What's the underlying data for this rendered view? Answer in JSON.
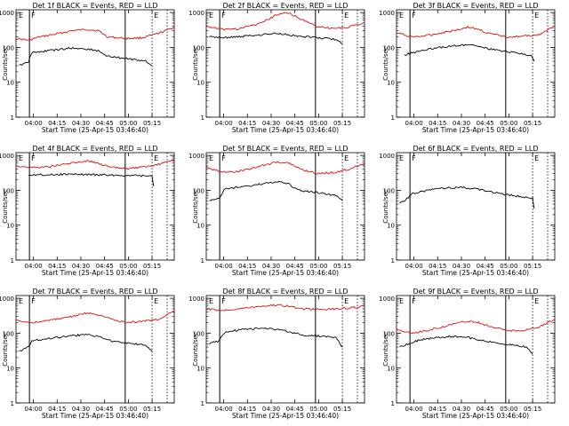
{
  "colors": {
    "events": "#000000",
    "lld": "#dd1111",
    "axis": "#000000"
  },
  "common": {
    "xlabel": "Start Time (25-Apr-15 03:46:40)",
    "ylabel": "Counts/sec",
    "xticks": [
      "04:00",
      "04:15",
      "04:30",
      "04:45",
      "05:00",
      "05:15"
    ],
    "yticks": [
      "1",
      "10",
      "100",
      "1000"
    ],
    "marker_E": "E",
    "marker_F": "F"
  },
  "chart_data": [
    {
      "type": "line",
      "title": "Det 1f BLACK = Events, RED = LLD",
      "yscale": "log",
      "ylim": [
        1,
        1200
      ],
      "lld": [
        [
          0,
          180
        ],
        [
          0.08,
          160
        ],
        [
          0.15,
          200
        ],
        [
          0.25,
          240
        ],
        [
          0.35,
          300
        ],
        [
          0.45,
          330
        ],
        [
          0.52,
          300
        ],
        [
          0.58,
          200
        ],
        [
          0.7,
          180
        ],
        [
          0.8,
          190
        ],
        [
          0.9,
          250
        ],
        [
          1,
          380
        ]
      ],
      "events": [
        [
          0.02,
          30
        ],
        [
          0.08,
          40
        ],
        [
          0.1,
          70
        ],
        [
          0.2,
          80
        ],
        [
          0.35,
          95
        ],
        [
          0.45,
          90
        ],
        [
          0.52,
          80
        ],
        [
          0.58,
          55
        ],
        [
          0.75,
          45
        ],
        [
          0.82,
          40
        ],
        [
          0.86,
          30
        ]
      ]
    },
    {
      "type": "line",
      "title": "Det 2f BLACK = Events, RED = LLD",
      "yscale": "log",
      "ylim": [
        1,
        1200
      ],
      "lld": [
        [
          0,
          420
        ],
        [
          0.08,
          330
        ],
        [
          0.2,
          340
        ],
        [
          0.35,
          500
        ],
        [
          0.45,
          900
        ],
        [
          0.52,
          1000
        ],
        [
          0.58,
          700
        ],
        [
          0.7,
          400
        ],
        [
          0.8,
          350
        ],
        [
          0.9,
          380
        ],
        [
          1,
          500
        ]
      ],
      "events": [
        [
          0.02,
          200
        ],
        [
          0.1,
          190
        ],
        [
          0.2,
          200
        ],
        [
          0.35,
          230
        ],
        [
          0.45,
          250
        ],
        [
          0.55,
          220
        ],
        [
          0.65,
          200
        ],
        [
          0.75,
          180
        ],
        [
          0.82,
          170
        ],
        [
          0.86,
          130
        ]
      ]
    },
    {
      "type": "line",
      "title": "Det 3f BLACK = Events, RED = LLD",
      "yscale": "log",
      "ylim": [
        1,
        1200
      ],
      "lld": [
        [
          0,
          260
        ],
        [
          0.1,
          200
        ],
        [
          0.2,
          220
        ],
        [
          0.35,
          300
        ],
        [
          0.45,
          380
        ],
        [
          0.52,
          330
        ],
        [
          0.58,
          250
        ],
        [
          0.7,
          200
        ],
        [
          0.8,
          210
        ],
        [
          0.9,
          230
        ],
        [
          1,
          400
        ]
      ],
      "events": [
        [
          0.05,
          60
        ],
        [
          0.1,
          70
        ],
        [
          0.2,
          90
        ],
        [
          0.35,
          110
        ],
        [
          0.45,
          120
        ],
        [
          0.52,
          110
        ],
        [
          0.58,
          90
        ],
        [
          0.7,
          75
        ],
        [
          0.8,
          65
        ],
        [
          0.85,
          60
        ],
        [
          0.87,
          40
        ]
      ]
    },
    {
      "type": "line",
      "title": "Det 4f BLACK = Events, RED = LLD",
      "yscale": "log",
      "ylim": [
        1,
        1200
      ],
      "lld": [
        [
          0,
          500
        ],
        [
          0.1,
          450
        ],
        [
          0.2,
          470
        ],
        [
          0.35,
          600
        ],
        [
          0.45,
          700
        ],
        [
          0.52,
          600
        ],
        [
          0.6,
          450
        ],
        [
          0.7,
          420
        ],
        [
          0.8,
          450
        ],
        [
          0.9,
          550
        ],
        [
          1,
          750
        ]
      ],
      "events": [
        [
          0.08,
          280
        ],
        [
          0.2,
          280
        ],
        [
          0.35,
          290
        ],
        [
          0.5,
          280
        ],
        [
          0.65,
          270
        ],
        [
          0.8,
          260
        ],
        [
          0.86,
          250
        ],
        [
          0.87,
          130
        ]
      ]
    },
    {
      "type": "line",
      "title": "Det 5f BLACK = Events, RED = LLD",
      "yscale": "log",
      "ylim": [
        1,
        1200
      ],
      "lld": [
        [
          0,
          450
        ],
        [
          0.1,
          330
        ],
        [
          0.2,
          350
        ],
        [
          0.35,
          500
        ],
        [
          0.45,
          650
        ],
        [
          0.52,
          600
        ],
        [
          0.6,
          400
        ],
        [
          0.7,
          300
        ],
        [
          0.8,
          320
        ],
        [
          0.9,
          400
        ],
        [
          1,
          600
        ]
      ],
      "events": [
        [
          0.02,
          50
        ],
        [
          0.08,
          60
        ],
        [
          0.12,
          110
        ],
        [
          0.25,
          130
        ],
        [
          0.35,
          150
        ],
        [
          0.45,
          180
        ],
        [
          0.52,
          150
        ],
        [
          0.58,
          100
        ],
        [
          0.75,
          80
        ],
        [
          0.82,
          70
        ],
        [
          0.86,
          50
        ]
      ]
    },
    {
      "type": "line",
      "title": "Det 6f BLACK = Events, RED = LLD",
      "yscale": "log",
      "ylim": [
        1,
        1200
      ],
      "lld": [],
      "events": [
        [
          0.02,
          45
        ],
        [
          0.05,
          50
        ],
        [
          0.1,
          80
        ],
        [
          0.2,
          100
        ],
        [
          0.3,
          115
        ],
        [
          0.4,
          120
        ],
        [
          0.5,
          110
        ],
        [
          0.6,
          90
        ],
        [
          0.7,
          75
        ],
        [
          0.8,
          65
        ],
        [
          0.86,
          60
        ],
        [
          0.87,
          30
        ]
      ]
    },
    {
      "type": "line",
      "title": "Det 7f BLACK = Events, RED = LLD",
      "yscale": "log",
      "ylim": [
        1,
        1200
      ],
      "lld": [
        [
          0,
          230
        ],
        [
          0.1,
          200
        ],
        [
          0.2,
          230
        ],
        [
          0.35,
          300
        ],
        [
          0.45,
          380
        ],
        [
          0.52,
          330
        ],
        [
          0.6,
          250
        ],
        [
          0.7,
          200
        ],
        [
          0.8,
          220
        ],
        [
          0.9,
          250
        ],
        [
          1,
          450
        ]
      ],
      "events": [
        [
          0.02,
          30
        ],
        [
          0.08,
          40
        ],
        [
          0.1,
          60
        ],
        [
          0.2,
          70
        ],
        [
          0.35,
          85
        ],
        [
          0.45,
          90
        ],
        [
          0.52,
          80
        ],
        [
          0.6,
          60
        ],
        [
          0.75,
          50
        ],
        [
          0.82,
          45
        ],
        [
          0.86,
          30
        ]
      ]
    },
    {
      "type": "line",
      "title": "Det 8f BLACK = Events, RED = LLD",
      "yscale": "log",
      "ylim": [
        1,
        1200
      ],
      "lld": [
        [
          0,
          500
        ],
        [
          0.1,
          450
        ],
        [
          0.2,
          500
        ],
        [
          0.35,
          600
        ],
        [
          0.45,
          650
        ],
        [
          0.52,
          600
        ],
        [
          0.6,
          500
        ],
        [
          0.7,
          480
        ],
        [
          0.8,
          490
        ],
        [
          0.9,
          520
        ],
        [
          1,
          600
        ]
      ],
      "events": [
        [
          0.02,
          50
        ],
        [
          0.08,
          60
        ],
        [
          0.12,
          110
        ],
        [
          0.25,
          130
        ],
        [
          0.35,
          140
        ],
        [
          0.45,
          130
        ],
        [
          0.52,
          110
        ],
        [
          0.6,
          90
        ],
        [
          0.75,
          80
        ],
        [
          0.82,
          75
        ],
        [
          0.86,
          40
        ]
      ]
    },
    {
      "type": "line",
      "title": "Det 9f BLACK = Events, RED = LLD",
      "yscale": "log",
      "ylim": [
        1,
        1200
      ],
      "lld": [
        [
          0,
          130
        ],
        [
          0.1,
          100
        ],
        [
          0.2,
          120
        ],
        [
          0.35,
          180
        ],
        [
          0.45,
          220
        ],
        [
          0.52,
          200
        ],
        [
          0.6,
          150
        ],
        [
          0.7,
          120
        ],
        [
          0.8,
          120
        ],
        [
          0.9,
          150
        ],
        [
          1,
          250
        ]
      ],
      "events": [
        [
          0.02,
          40
        ],
        [
          0.08,
          50
        ],
        [
          0.12,
          60
        ],
        [
          0.25,
          75
        ],
        [
          0.35,
          80
        ],
        [
          0.45,
          75
        ],
        [
          0.52,
          65
        ],
        [
          0.6,
          55
        ],
        [
          0.75,
          45
        ],
        [
          0.82,
          40
        ],
        [
          0.86,
          25
        ]
      ]
    }
  ]
}
